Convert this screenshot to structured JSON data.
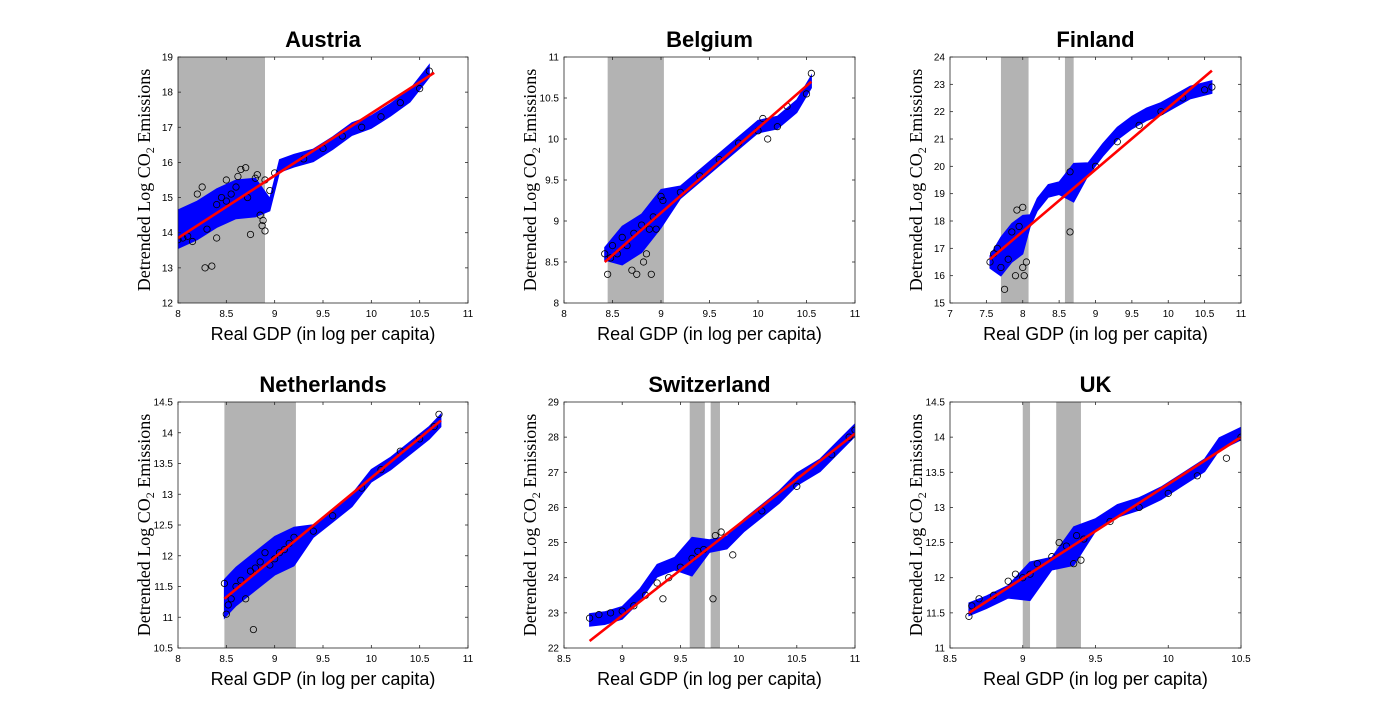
{
  "chart_data": [
    {
      "type": "scatter",
      "title": "Austria",
      "xlabel": "Real GDP (in log per capita)",
      "ylabel": "Detrended Log CO2 Emissions",
      "xlim": [
        8,
        11
      ],
      "ylim": [
        12,
        19
      ],
      "xticks": [
        "8",
        "8.5",
        "9",
        "9.5",
        "10",
        "10.5",
        "11"
      ],
      "yticks": [
        "12",
        "13",
        "14",
        "15",
        "16",
        "17",
        "18",
        "19"
      ],
      "shaded_regions": [
        [
          8.0,
          8.9
        ]
      ],
      "fit_line": {
        "x": [
          8.0,
          10.65
        ],
        "y": [
          13.85,
          18.55
        ]
      },
      "band": {
        "x": [
          8.0,
          8.2,
          8.4,
          8.6,
          8.8,
          8.95,
          9.05,
          9.2,
          9.4,
          9.6,
          9.8,
          10.0,
          10.2,
          10.4,
          10.6
        ],
        "y": [
          14.1,
          14.35,
          14.7,
          14.95,
          15.0,
          14.8,
          15.9,
          16.05,
          16.2,
          16.55,
          16.95,
          17.15,
          17.5,
          17.9,
          18.6
        ]
      },
      "points": {
        "x": [
          8.0,
          8.05,
          8.1,
          8.15,
          8.2,
          8.25,
          8.28,
          8.3,
          8.35,
          8.4,
          8.4,
          8.45,
          8.5,
          8.5,
          8.55,
          8.6,
          8.62,
          8.65,
          8.7,
          8.72,
          8.75,
          8.8,
          8.82,
          8.85,
          8.87,
          8.88,
          8.9,
          8.9,
          8.95,
          9.0,
          9.3,
          9.5,
          9.7,
          9.9,
          10.1,
          10.3,
          10.5,
          10.6
        ],
        "y": [
          13.8,
          13.85,
          13.9,
          13.75,
          15.1,
          15.3,
          13.0,
          14.1,
          13.05,
          14.8,
          13.85,
          15.0,
          14.9,
          15.5,
          15.1,
          15.3,
          15.6,
          15.8,
          15.85,
          15.0,
          13.95,
          15.55,
          15.65,
          14.5,
          14.2,
          14.35,
          14.05,
          15.5,
          15.2,
          15.7,
          16.1,
          16.4,
          16.75,
          17.0,
          17.3,
          17.7,
          18.1,
          18.6
        ]
      }
    },
    {
      "type": "scatter",
      "title": "Belgium",
      "xlabel": "Real GDP (in log per capita)",
      "ylabel": "Detrended Log CO2 Emissions",
      "xlim": [
        8,
        11
      ],
      "ylim": [
        8,
        11
      ],
      "xticks": [
        "8",
        "8.5",
        "9",
        "9.5",
        "10",
        "10.5",
        "11"
      ],
      "yticks": [
        "8",
        "8.5",
        "9",
        "9.5",
        "10",
        "10.5",
        "11"
      ],
      "shaded_regions": [
        [
          8.45,
          9.03
        ]
      ],
      "fit_line": {
        "x": [
          8.42,
          10.55
        ],
        "y": [
          8.5,
          10.7
        ]
      },
      "band": {
        "x": [
          8.42,
          8.6,
          8.8,
          9.0,
          9.2,
          9.4,
          9.6,
          9.8,
          10.0,
          10.2,
          10.4,
          10.55
        ],
        "y": [
          8.6,
          8.7,
          8.85,
          9.15,
          9.35,
          9.55,
          9.75,
          9.95,
          10.15,
          10.2,
          10.4,
          10.7
        ]
      },
      "points": {
        "x": [
          8.42,
          8.45,
          8.48,
          8.5,
          8.55,
          8.6,
          8.65,
          8.7,
          8.72,
          8.75,
          8.8,
          8.82,
          8.85,
          8.88,
          8.9,
          8.92,
          8.95,
          9.0,
          9.02,
          9.2,
          9.4,
          9.6,
          9.8,
          10.0,
          10.05,
          10.1,
          10.2,
          10.3,
          10.5,
          10.55
        ],
        "y": [
          8.6,
          8.35,
          8.55,
          8.7,
          8.6,
          8.8,
          8.7,
          8.4,
          8.85,
          8.35,
          8.95,
          8.5,
          8.6,
          8.9,
          8.35,
          9.05,
          8.9,
          9.3,
          9.25,
          9.35,
          9.55,
          9.75,
          9.95,
          10.1,
          10.25,
          10.0,
          10.15,
          10.4,
          10.55,
          10.8
        ]
      }
    },
    {
      "type": "scatter",
      "title": "Finland",
      "xlabel": "Real GDP (in log per capita)",
      "ylabel": "Detrended Log CO2 Emissions",
      "xlim": [
        7,
        11
      ],
      "ylim": [
        15,
        24
      ],
      "xticks": [
        "7",
        "7.5",
        "8",
        "8.5",
        "9",
        "9.5",
        "10",
        "10.5",
        "11"
      ],
      "yticks": [
        "15",
        "16",
        "17",
        "18",
        "19",
        "20",
        "21",
        "22",
        "23",
        "24"
      ],
      "shaded_regions": [
        [
          7.7,
          8.08
        ],
        [
          8.58,
          8.7
        ]
      ],
      "fit_line": {
        "x": [
          7.55,
          10.6
        ],
        "y": [
          16.6,
          23.5
        ]
      },
      "band": {
        "x": [
          7.55,
          7.7,
          7.85,
          8.0,
          8.1,
          8.2,
          8.35,
          8.5,
          8.7,
          8.9,
          9.1,
          9.3,
          9.5,
          9.7,
          9.9,
          10.1,
          10.3,
          10.6
        ],
        "y": [
          16.5,
          16.7,
          17.2,
          17.5,
          18.0,
          18.6,
          19.1,
          19.2,
          19.4,
          19.9,
          20.6,
          21.2,
          21.6,
          21.9,
          22.1,
          22.4,
          22.7,
          22.9
        ]
      },
      "points": {
        "x": [
          7.55,
          7.6,
          7.65,
          7.7,
          7.75,
          7.8,
          7.85,
          7.9,
          7.92,
          7.95,
          8.0,
          8.0,
          8.02,
          8.05,
          8.65,
          8.65,
          9.0,
          9.3,
          9.6,
          9.9,
          10.2,
          10.5,
          10.6
        ],
        "y": [
          16.5,
          16.8,
          17.0,
          16.3,
          15.5,
          16.6,
          17.6,
          16.0,
          18.4,
          17.8,
          16.3,
          18.5,
          16.0,
          16.5,
          17.6,
          19.8,
          20.0,
          20.9,
          21.5,
          22.0,
          22.5,
          22.8,
          22.9
        ]
      }
    },
    {
      "type": "scatter",
      "title": "Netherlands",
      "xlabel": "Real GDP (in log per capita)",
      "ylabel": "Detrended Log CO2 Emissions",
      "xlim": [
        8,
        11
      ],
      "ylim": [
        10.5,
        14.5
      ],
      "xticks": [
        "8",
        "8.5",
        "9",
        "9.5",
        "10",
        "10.5",
        "11"
      ],
      "yticks": [
        "10.5",
        "11",
        "11.5",
        "12",
        "12.5",
        "13",
        "13.5",
        "14",
        "14.5"
      ],
      "shaded_regions": [
        [
          8.48,
          9.22
        ]
      ],
      "fit_line": {
        "x": [
          8.48,
          10.72
        ],
        "y": [
          11.3,
          14.2
        ]
      },
      "band": {
        "x": [
          8.48,
          8.6,
          8.8,
          9.0,
          9.2,
          9.4,
          9.6,
          9.8,
          10.0,
          10.2,
          10.4,
          10.6,
          10.72
        ],
        "y": [
          11.3,
          11.5,
          11.75,
          12.0,
          12.15,
          12.4,
          12.65,
          12.9,
          13.3,
          13.5,
          13.75,
          14.0,
          14.2
        ]
      },
      "points": {
        "x": [
          8.48,
          8.5,
          8.52,
          8.55,
          8.6,
          8.65,
          8.7,
          8.75,
          8.78,
          8.8,
          8.85,
          8.9,
          8.95,
          9.0,
          9.05,
          9.1,
          9.15,
          9.2,
          9.4,
          9.6,
          9.9,
          10.1,
          10.3,
          10.5,
          10.65,
          10.7
        ],
        "y": [
          11.55,
          11.05,
          11.2,
          11.3,
          11.5,
          11.6,
          11.3,
          11.75,
          10.8,
          11.8,
          11.9,
          12.05,
          11.85,
          11.95,
          12.05,
          12.1,
          12.2,
          12.3,
          12.4,
          12.65,
          13.1,
          13.4,
          13.7,
          13.9,
          14.1,
          14.3
        ]
      }
    },
    {
      "type": "scatter",
      "title": "Switzerland",
      "xlabel": "Real GDP (in log per capita)",
      "ylabel": "Detrended Log CO2 Emissions",
      "xlim": [
        8.5,
        11
      ],
      "ylim": [
        22,
        29
      ],
      "xticks": [
        "8.5",
        "9",
        "9.5",
        "10",
        "10.5",
        "11"
      ],
      "yticks": [
        "22",
        "23",
        "24",
        "25",
        "26",
        "27",
        "28",
        "29"
      ],
      "shaded_regions": [
        [
          9.58,
          9.71
        ],
        [
          9.76,
          9.84
        ]
      ],
      "fit_line": {
        "x": [
          8.72,
          11.0
        ],
        "y": [
          22.2,
          28.1
        ]
      },
      "band": {
        "x": [
          8.72,
          8.85,
          9.0,
          9.15,
          9.3,
          9.45,
          9.6,
          9.75,
          9.9,
          10.05,
          10.2,
          10.35,
          10.5,
          10.7,
          10.85,
          11.0
        ],
        "y": [
          22.8,
          22.85,
          23.0,
          23.5,
          24.2,
          24.4,
          24.6,
          24.9,
          25.0,
          25.5,
          25.9,
          26.3,
          26.8,
          27.2,
          27.7,
          28.2
        ]
      },
      "points": {
        "x": [
          8.72,
          8.8,
          8.9,
          9.0,
          9.1,
          9.2,
          9.3,
          9.35,
          9.4,
          9.5,
          9.6,
          9.65,
          9.7,
          9.78,
          9.8,
          9.85,
          9.95,
          10.2,
          10.5,
          10.8,
          10.95,
          11.0
        ],
        "y": [
          22.85,
          22.95,
          23.0,
          23.05,
          23.2,
          23.5,
          23.85,
          23.4,
          24.0,
          24.3,
          24.55,
          24.75,
          24.8,
          23.4,
          25.2,
          25.3,
          24.65,
          25.9,
          26.6,
          27.5,
          28.0,
          28.2
        ]
      }
    },
    {
      "type": "scatter",
      "title": "UK",
      "xlabel": "Real GDP (in log per capita)",
      "ylabel": "Detrended Log CO2 Emissions",
      "xlim": [
        8.5,
        10.5
      ],
      "ylim": [
        11,
        14.5
      ],
      "xticks": [
        "8.5",
        "9",
        "9.5",
        "10",
        "10.5"
      ],
      "yticks": [
        "11",
        "11.5",
        "12",
        "12.5",
        "13",
        "13.5",
        "14",
        "14.5"
      ],
      "shaded_regions": [
        [
          9.0,
          9.05
        ],
        [
          9.23,
          9.4
        ]
      ],
      "fit_line": {
        "x": [
          8.63,
          10.5
        ],
        "y": [
          11.5,
          14.0
        ]
      },
      "band": {
        "x": [
          8.63,
          8.75,
          8.9,
          9.05,
          9.2,
          9.35,
          9.5,
          9.65,
          9.8,
          9.95,
          10.1,
          10.25,
          10.35,
          10.5
        ],
        "y": [
          11.55,
          11.65,
          11.8,
          11.95,
          12.2,
          12.45,
          12.75,
          12.95,
          13.05,
          13.2,
          13.4,
          13.6,
          13.9,
          14.05
        ]
      },
      "points": {
        "x": [
          8.63,
          8.65,
          8.7,
          8.8,
          8.9,
          8.95,
          9.0,
          9.05,
          9.1,
          9.2,
          9.25,
          9.3,
          9.35,
          9.37,
          9.4,
          9.42,
          9.6,
          9.8,
          10.0,
          10.2,
          10.4,
          10.5
        ],
        "y": [
          11.45,
          11.6,
          11.7,
          11.75,
          11.95,
          12.05,
          12.0,
          12.05,
          12.2,
          12.3,
          12.5,
          12.45,
          12.2,
          12.6,
          12.25,
          12.55,
          12.8,
          13.0,
          13.2,
          13.45,
          13.7,
          14.0
        ]
      }
    }
  ]
}
